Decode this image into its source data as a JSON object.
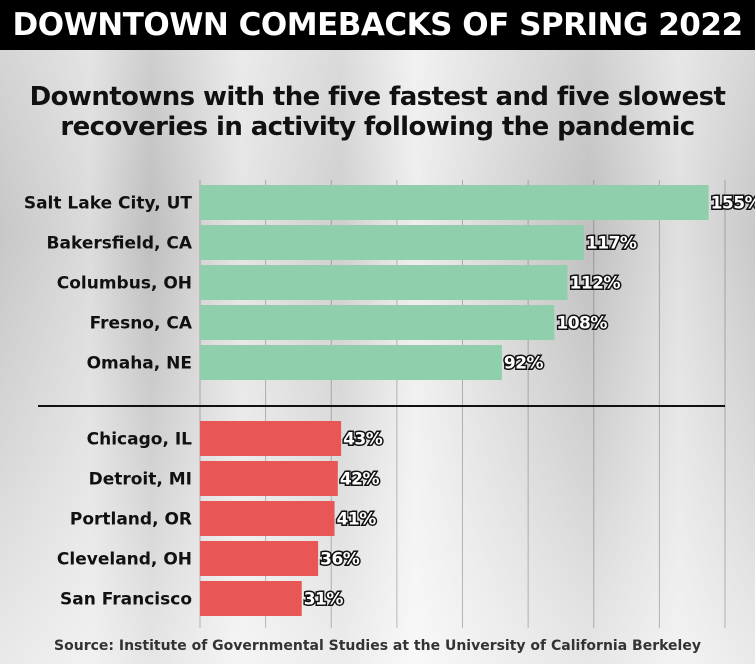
{
  "header": {
    "title": "DOWNTOWN COMEBACKS OF SPRING 2022"
  },
  "subtitle": {
    "line1": "Downtowns with the five fastest and five slowest",
    "line2": "recoveries in activity following the pandemic"
  },
  "source": "Source: Institute of Governmental Studies at the University of California Berkeley",
  "colors": {
    "fastest": "#8fcfac",
    "slowest": "#e85656",
    "header_bg": "#000000"
  },
  "chart_data": {
    "type": "bar",
    "orientation": "horizontal",
    "title": "DOWNTOWN COMEBACKS OF SPRING 2022",
    "subtitle": "Downtowns with the five fastest and five slowest recoveries in activity following the pandemic",
    "xlim": [
      0,
      160
    ],
    "grid": true,
    "groups": [
      {
        "color": "#8fcfac",
        "categories": [
          "Salt Lake City, UT",
          "Bakersfield, CA",
          "Columbus, OH",
          "Fresno, CA",
          "Omaha, NE"
        ],
        "values": [
          155,
          117,
          112,
          108,
          92
        ],
        "labels": [
          "155%",
          "117%",
          "112%",
          "108%",
          "92%"
        ]
      },
      {
        "color": "#e85656",
        "categories": [
          "Chicago, IL",
          "Detroit, MI",
          "Portland, OR",
          "Cleveland, OH",
          "San Francisco"
        ],
        "values": [
          43,
          42,
          41,
          36,
          31
        ],
        "labels": [
          "43%",
          "42%",
          "41%",
          "36%",
          "31%"
        ]
      }
    ]
  }
}
